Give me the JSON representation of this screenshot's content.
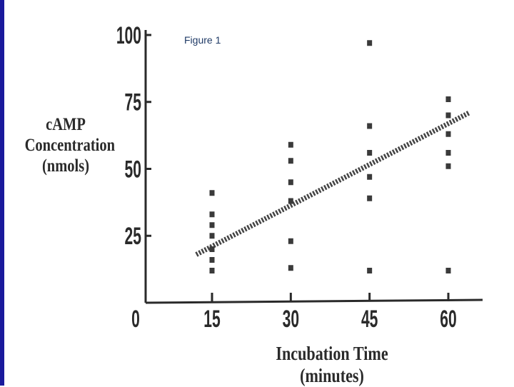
{
  "figure_label": "Figure 1",
  "chart_data": {
    "type": "scatter",
    "title": "",
    "ylabel_lines": [
      "cAMP",
      "Concentration",
      "(nmols)"
    ],
    "xlabel": "Incubation Time (minutes)",
    "xlim": [
      0,
      67
    ],
    "ylim": [
      0,
      100
    ],
    "x_origin_label": "0",
    "xticks": [
      15,
      30,
      45,
      60
    ],
    "yticks": [
      25,
      50,
      75,
      100
    ],
    "points": [
      {
        "x": 15,
        "y": 41
      },
      {
        "x": 15,
        "y": 33
      },
      {
        "x": 15,
        "y": 29
      },
      {
        "x": 15,
        "y": 25
      },
      {
        "x": 15,
        "y": 20
      },
      {
        "x": 15,
        "y": 16
      },
      {
        "x": 15,
        "y": 12
      },
      {
        "x": 30,
        "y": 59
      },
      {
        "x": 30,
        "y": 53
      },
      {
        "x": 30,
        "y": 45
      },
      {
        "x": 30,
        "y": 38
      },
      {
        "x": 30,
        "y": 23
      },
      {
        "x": 30,
        "y": 13
      },
      {
        "x": 45,
        "y": 97
      },
      {
        "x": 45,
        "y": 66
      },
      {
        "x": 45,
        "y": 56
      },
      {
        "x": 45,
        "y": 47
      },
      {
        "x": 45,
        "y": 39
      },
      {
        "x": 45,
        "y": 12
      },
      {
        "x": 60,
        "y": 76
      },
      {
        "x": 60,
        "y": 70
      },
      {
        "x": 60,
        "y": 63
      },
      {
        "x": 60,
        "y": 56
      },
      {
        "x": 60,
        "y": 51
      },
      {
        "x": 60,
        "y": 12
      }
    ],
    "trend_line": {
      "style": "dashed",
      "from": {
        "x": 12,
        "y": 18
      },
      "to": {
        "x": 64,
        "y": 71
      }
    }
  }
}
